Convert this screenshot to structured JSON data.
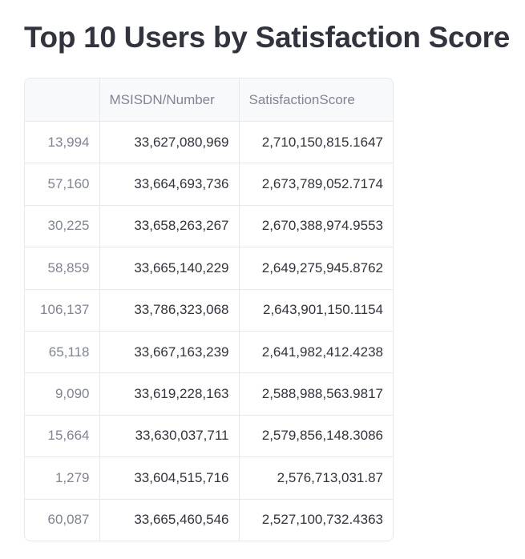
{
  "header": {
    "title": "Top 10 Users by Satisfaction Score"
  },
  "table": {
    "columns": [
      "MSISDN/Number",
      "SatisfactionScore"
    ],
    "rows": [
      [
        "13,994",
        "33,627,080,969",
        "2,710,150,815.1647"
      ],
      [
        "57,160",
        "33,664,693,736",
        "2,673,789,052.7174"
      ],
      [
        "30,225",
        "33,658,263,267",
        "2,670,388,974.9553"
      ],
      [
        "58,859",
        "33,665,140,229",
        "2,649,275,945.8762"
      ],
      [
        "106,137",
        "33,786,323,068",
        "2,643,901,150.1154"
      ],
      [
        "65,118",
        "33,667,163,239",
        "2,641,982,412.4238"
      ],
      [
        "9,090",
        "33,619,228,163",
        "2,588,988,563.9817"
      ],
      [
        "15,664",
        "33,630,037,711",
        "2,579,856,148.3086"
      ],
      [
        "1,279",
        "33,604,515,716",
        "2,576,713,031.87"
      ],
      [
        "60,087",
        "33,665,460,546",
        "2,527,100,732.4363"
      ]
    ]
  }
}
